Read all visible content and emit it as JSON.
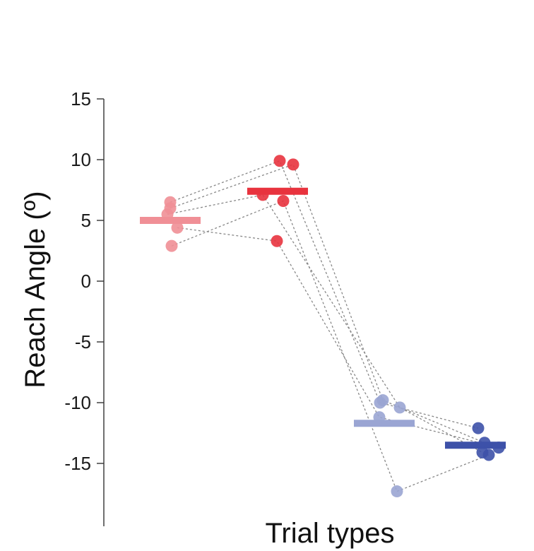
{
  "chart_data": {
    "type": "scatter",
    "xlabel": "Trial types",
    "ylabel": "Reach Angle (º)",
    "ylim": [
      -20,
      15
    ],
    "yticks": [
      15,
      10,
      5,
      0,
      -5,
      -10,
      -15
    ],
    "yticklabels": [
      "15",
      "10",
      "5",
      "0",
      "-5",
      "-10",
      "-15"
    ],
    "grid": false,
    "groups": [
      {
        "color": "#f08f96",
        "mean": 5.0,
        "points": [
          6.5,
          6.0,
          5.5,
          4.4,
          2.9
        ]
      },
      {
        "color": "#e8333e",
        "mean": 7.4,
        "points": [
          9.9,
          9.6,
          7.1,
          6.6,
          3.3
        ]
      },
      {
        "color": "#9aa5d3",
        "mean": -11.7,
        "points": [
          -10.0,
          -9.8,
          -10.4,
          -11.2,
          -17.3
        ]
      },
      {
        "color": "#3d51a8",
        "mean": -13.5,
        "points": [
          -12.1,
          -13.3,
          -14.1,
          -13.7,
          -14.3
        ]
      }
    ],
    "subject_lines": [
      [
        6.5,
        9.9,
        -10.0,
        -12.1
      ],
      [
        6.0,
        9.6,
        -9.8,
        -13.3
      ],
      [
        5.5,
        7.1,
        -10.4,
        -14.1
      ],
      [
        4.4,
        3.3,
        -11.2,
        -13.7
      ],
      [
        2.9,
        6.6,
        -17.3,
        -14.3
      ]
    ]
  }
}
